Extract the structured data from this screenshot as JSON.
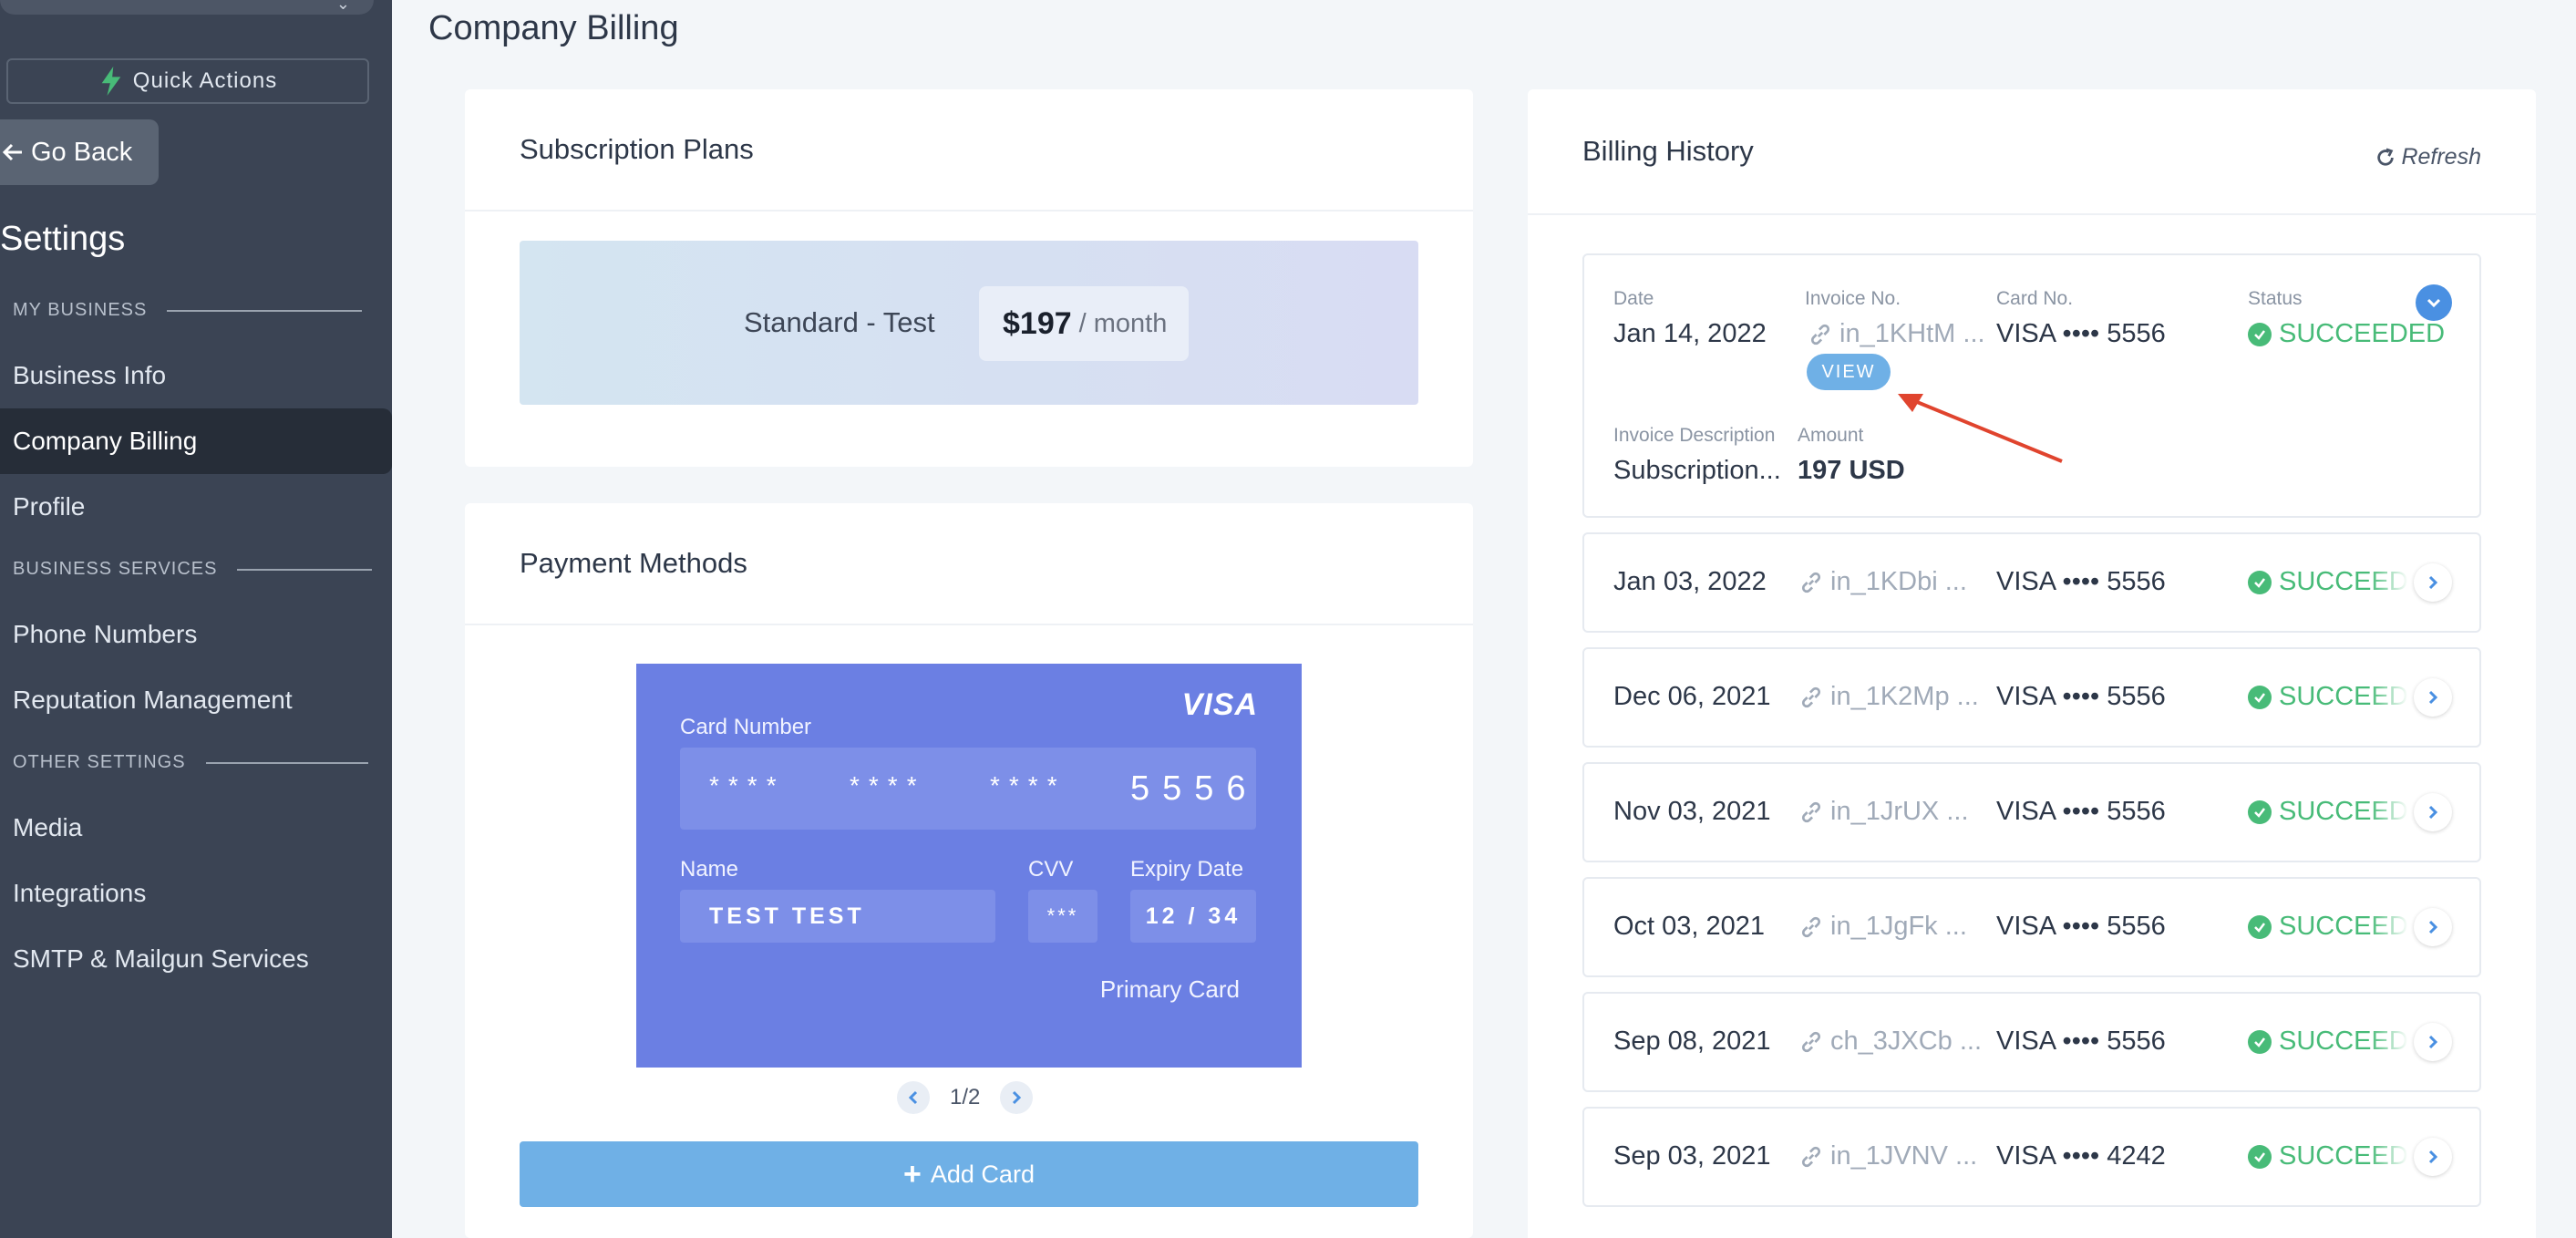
{
  "sidebar": {
    "quick_actions": "Quick Actions",
    "go_back": "Go Back",
    "title": "Settings",
    "sections": [
      {
        "label": "MY BUSINESS",
        "items": [
          "Business Info",
          "Company Billing",
          "Profile"
        ]
      },
      {
        "label": "BUSINESS SERVICES",
        "items": [
          "Phone Numbers",
          "Reputation Management"
        ]
      },
      {
        "label": "OTHER SETTINGS",
        "items": [
          "Media",
          "Integrations",
          "SMTP & Mailgun Services"
        ]
      }
    ],
    "active_item": "Company Billing"
  },
  "page": {
    "title": "Company Billing"
  },
  "subscription": {
    "title": "Subscription Plans",
    "plan_name": "Standard - Test",
    "price": "$197",
    "period": "/ month"
  },
  "payment": {
    "title": "Payment Methods",
    "card": {
      "brand": "VISA",
      "number_label": "Card Number",
      "groups": [
        "****",
        "****",
        "****"
      ],
      "last4": "5556",
      "name_label": "Name",
      "name": "TEST TEST",
      "cvv_label": "CVV",
      "cvv": "***",
      "expiry_label": "Expiry Date",
      "expiry": "12 / 34",
      "primary_label": "Primary Card"
    },
    "pager": "1/2",
    "add_card": "Add Card"
  },
  "billing": {
    "title": "Billing History",
    "refresh": "Refresh",
    "headers": {
      "date": "Date",
      "invoice": "Invoice No.",
      "card": "Card No.",
      "status": "Status",
      "description": "Invoice Description",
      "amount": "Amount"
    },
    "expanded": {
      "date": "Jan 14, 2022",
      "invoice": "in_1KHtM ...",
      "card": "VISA •••• 5556",
      "status": "SUCCEEDED",
      "view": "VIEW",
      "description": "Subscription...",
      "amount": "197 USD"
    },
    "rows": [
      {
        "date": "Jan 03, 2022",
        "invoice": "in_1KDbi ...",
        "card": "VISA •••• 5556",
        "status": "SUCCEEDED"
      },
      {
        "date": "Dec 06, 2021",
        "invoice": "in_1K2Mp ...",
        "card": "VISA •••• 5556",
        "status": "SUCCEEDED"
      },
      {
        "date": "Nov 03, 2021",
        "invoice": "in_1JrUX ...",
        "card": "VISA •••• 5556",
        "status": "SUCCEEDED"
      },
      {
        "date": "Oct 03, 2021",
        "invoice": "in_1JgFk ...",
        "card": "VISA •••• 5556",
        "status": "SUCCEEDED"
      },
      {
        "date": "Sep 08, 2021",
        "invoice": "ch_3JXCb ...",
        "card": "VISA •••• 5556",
        "status": "SUCCEEDED"
      },
      {
        "date": "Sep 03, 2021",
        "invoice": "in_1JVNV ...",
        "card": "VISA •••• 4242",
        "status": "SUCCEEDED"
      }
    ]
  },
  "colors": {
    "sidebar_bg": "#3b4454",
    "card_bg": "#6b7fe3",
    "accent_blue": "#6fb0e6",
    "success": "#48bb78",
    "annotation_arrow": "#e0442e"
  }
}
